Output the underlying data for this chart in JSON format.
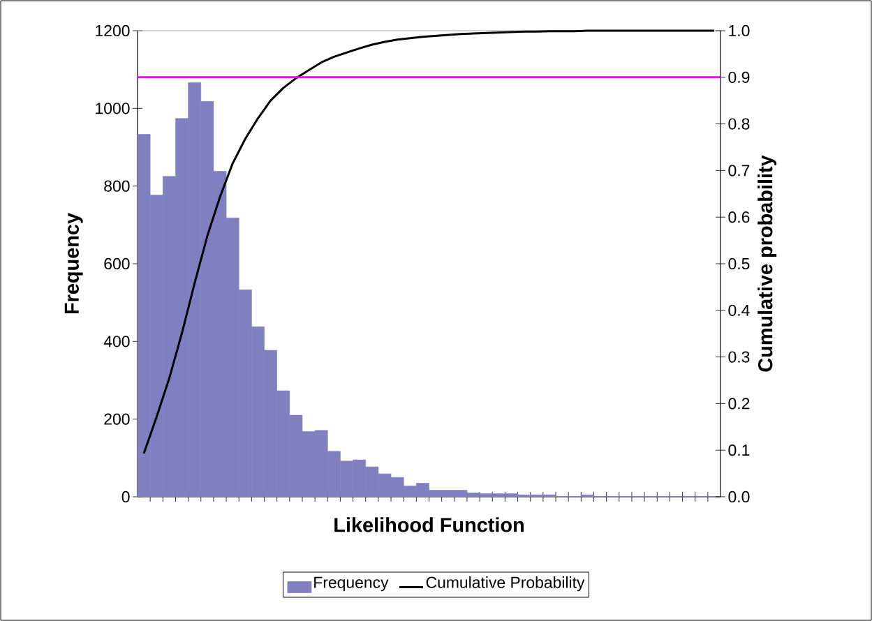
{
  "chart_data": {
    "type": "bar",
    "xlabel": "Likelihood Function",
    "ylabel": "Frequency",
    "y2label": "Cumulative probability",
    "categories": [
      null,
      null,
      null,
      null,
      null,
      null,
      null,
      null,
      null,
      null,
      null,
      null,
      null,
      null,
      null,
      null,
      null,
      null,
      null,
      null,
      null,
      null,
      null,
      null,
      null,
      null,
      null,
      null,
      null,
      null,
      null,
      null,
      null,
      null,
      null,
      null,
      null,
      null,
      null,
      null,
      null,
      null,
      null,
      null,
      null,
      null
    ],
    "ylim": [
      0,
      1200
    ],
    "yticks": [
      0,
      200,
      400,
      600,
      800,
      1000,
      1200
    ],
    "y2lim": [
      0,
      1
    ],
    "y2ticks": [
      {
        "value": 0,
        "label": "0.0"
      },
      {
        "value": 0.1,
        "label": "0.1"
      },
      {
        "value": 0.2,
        "label": "0.2"
      },
      {
        "value": 0.3,
        "label": "0.3"
      },
      {
        "value": 0.4,
        "label": "0.4"
      },
      {
        "value": 0.5,
        "label": "0.5"
      },
      {
        "value": 0.6,
        "label": "0.6"
      },
      {
        "value": 0.7,
        "label": "0.7"
      },
      {
        "value": 0.8,
        "label": "0.8"
      },
      {
        "value": 0.9,
        "label": "0.9"
      },
      {
        "value": 1,
        "label": "1.0"
      }
    ],
    "series": [
      {
        "name": "Frequency",
        "color": "#8080c0",
        "values": [
          933,
          777,
          825,
          974,
          1066,
          1018,
          838,
          718,
          533,
          438,
          377,
          273,
          210,
          168,
          171,
          117,
          92,
          95,
          77,
          59,
          50,
          28,
          35,
          17,
          17,
          17,
          10,
          8,
          8,
          8,
          5,
          5,
          5,
          1,
          1,
          5,
          1,
          1,
          1,
          1,
          1,
          1,
          0,
          0,
          1,
          0
        ]
      },
      {
        "name": "Cumulative Probability",
        "type": "line",
        "axis": "y2",
        "color": "#000000",
        "values": [
          0.093,
          0.171,
          0.254,
          0.351,
          0.458,
          0.559,
          0.643,
          0.715,
          0.768,
          0.812,
          0.85,
          0.877,
          0.898,
          0.915,
          0.932,
          0.944,
          0.953,
          0.962,
          0.97,
          0.976,
          0.981,
          0.984,
          0.987,
          0.989,
          0.991,
          0.993,
          0.994,
          0.995,
          0.996,
          0.997,
          0.998,
          0.998,
          0.999,
          0.999,
          0.999,
          1,
          1,
          1,
          1,
          1,
          1,
          1,
          1,
          1,
          1,
          1
        ]
      }
    ],
    "ref_lines": [
      {
        "axis": "y2",
        "value": 0.9,
        "color": "#ff00ff"
      }
    ],
    "legend": "bottom"
  }
}
